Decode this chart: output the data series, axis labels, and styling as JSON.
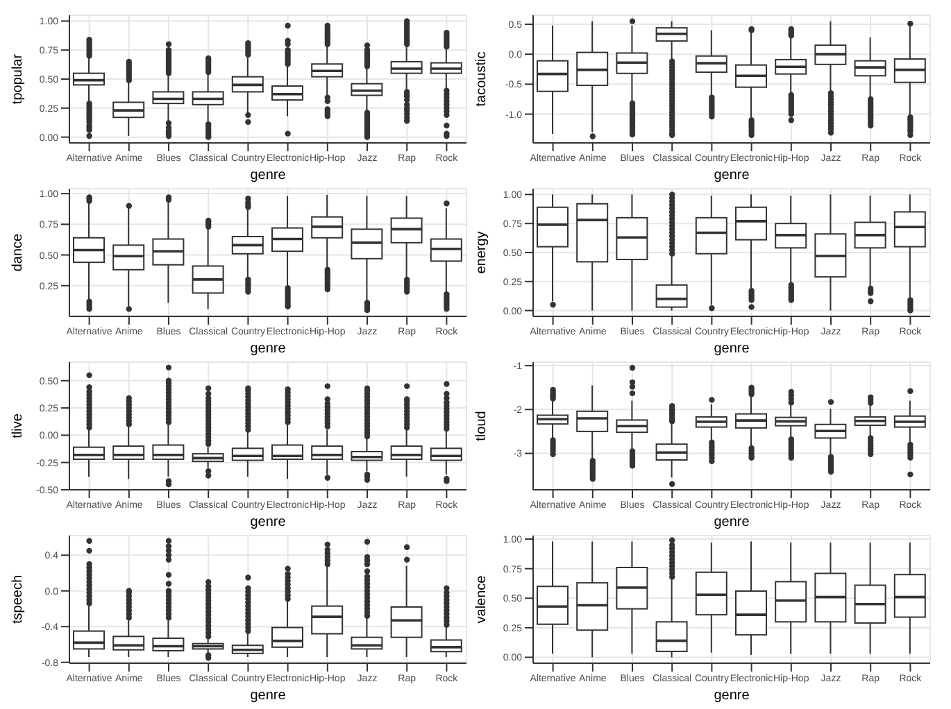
{
  "chart_data": [
    {
      "type": "box",
      "ylabel": "tpopular",
      "xlabel": "genre",
      "color": "#333333",
      "grid": true,
      "categories": [
        "Alternative",
        "Anime",
        "Blues",
        "Classical",
        "Country",
        "Electronic",
        "Hip-Hop",
        "Jazz",
        "Rap",
        "Rock"
      ],
      "ylim": [
        -0.05,
        1.05
      ],
      "yticks": [
        {
          "value": 0,
          "label": "0.00"
        },
        {
          "value": 0.25,
          "label": "0.25"
        },
        {
          "value": 0.5,
          "label": "0.50"
        },
        {
          "value": 0.75,
          "label": "0.75"
        },
        {
          "value": 1,
          "label": "1.00"
        }
      ],
      "boxes": [
        {
          "low": 0.3,
          "q1": 0.45,
          "median": 0.49,
          "q3": 0.55,
          "high": 0.69,
          "outliers": [
            0.7,
            0.72,
            0.74,
            0.76,
            0.78,
            0.8,
            0.82,
            0.84,
            0.29,
            0.27,
            0.25,
            0.23,
            0.21,
            0.19,
            0.17,
            0.15,
            0.13,
            0.1,
            0.08,
            0.06,
            0.01
          ]
        },
        {
          "low": 0.01,
          "q1": 0.17,
          "median": 0.23,
          "q3": 0.3,
          "high": 0.48,
          "outliers": [
            0.49,
            0.51,
            0.53,
            0.55,
            0.57,
            0.59,
            0.61,
            0.63,
            0.65
          ]
        },
        {
          "low": 0.14,
          "q1": 0.29,
          "median": 0.33,
          "q3": 0.39,
          "high": 0.54,
          "outliers": [
            0.55,
            0.57,
            0.59,
            0.61,
            0.63,
            0.65,
            0.67,
            0.69,
            0.71,
            0.73,
            0.75,
            0.8,
            0.12,
            0.08,
            0.05,
            0.03,
            0.01
          ]
        },
        {
          "low": 0.13,
          "q1": 0.28,
          "median": 0.33,
          "q3": 0.39,
          "high": 0.55,
          "outliers": [
            0.56,
            0.58,
            0.6,
            0.62,
            0.64,
            0.66,
            0.68,
            0.11,
            0.09,
            0.07,
            0.05,
            0.03,
            0.01,
            0.0
          ]
        },
        {
          "low": 0.2,
          "q1": 0.39,
          "median": 0.45,
          "q3": 0.52,
          "high": 0.7,
          "outliers": [
            0.71,
            0.73,
            0.75,
            0.77,
            0.79,
            0.81,
            0.19,
            0.13
          ]
        },
        {
          "low": 0.18,
          "q1": 0.32,
          "median": 0.37,
          "q3": 0.44,
          "high": 0.62,
          "outliers": [
            0.63,
            0.65,
            0.67,
            0.69,
            0.71,
            0.73,
            0.75,
            0.8,
            0.83,
            0.96,
            0.03
          ]
        },
        {
          "low": 0.36,
          "q1": 0.52,
          "median": 0.57,
          "q3": 0.63,
          "high": 0.79,
          "outliers": [
            0.8,
            0.82,
            0.84,
            0.86,
            0.88,
            0.9,
            0.92,
            0.94,
            0.96,
            0.34,
            0.31,
            0.24,
            0.22,
            0.2,
            0.18
          ]
        },
        {
          "low": 0.22,
          "q1": 0.36,
          "median": 0.4,
          "q3": 0.46,
          "high": 0.6,
          "outliers": [
            0.61,
            0.63,
            0.65,
            0.67,
            0.69,
            0.71,
            0.73,
            0.75,
            0.79,
            0.21,
            0.19,
            0.17,
            0.15,
            0.13,
            0.11,
            0.09,
            0.07,
            0.05,
            0.03,
            0.01,
            0.0
          ]
        },
        {
          "low": 0.41,
          "q1": 0.55,
          "median": 0.59,
          "q3": 0.65,
          "high": 0.79,
          "outliers": [
            0.8,
            0.82,
            0.84,
            0.86,
            0.88,
            0.9,
            0.92,
            0.94,
            0.96,
            0.98,
            1.0,
            0.39,
            0.37,
            0.35,
            0.32,
            0.28,
            0.25,
            0.23,
            0.2,
            0.17,
            0.14
          ]
        },
        {
          "low": 0.42,
          "q1": 0.55,
          "median": 0.59,
          "q3": 0.64,
          "high": 0.77,
          "outliers": [
            0.78,
            0.8,
            0.82,
            0.84,
            0.86,
            0.88,
            0.9,
            0.4,
            0.37,
            0.34,
            0.31,
            0.28,
            0.25,
            0.22,
            0.19,
            0.1,
            0.03,
            0.01
          ]
        }
      ]
    },
    {
      "type": "box",
      "ylabel": "tacoustic",
      "xlabel": "genre",
      "color": "#333333",
      "grid": true,
      "categories": [
        "Alternative",
        "Anime",
        "Blues",
        "Classical",
        "Country",
        "Electronic",
        "Hip-Hop",
        "Jazz",
        "Rap",
        "Rock"
      ],
      "ylim": [
        -1.48,
        0.65
      ],
      "yticks": [
        {
          "value": -1,
          "label": "-1.0"
        },
        -0.5,
        {
          "value": 0,
          "label": "0.0"
        },
        0.5
      ],
      "boxes": [
        {
          "low": -1.33,
          "q1": -0.62,
          "median": -0.33,
          "q3": -0.11,
          "high": 0.48
        },
        {
          "low": -1.3,
          "q1": -0.52,
          "median": -0.26,
          "q3": 0.03,
          "high": 0.55,
          "outliers": [
            -1.37
          ]
        },
        {
          "low": -0.78,
          "q1": -0.32,
          "median": -0.14,
          "q3": 0.02,
          "high": 0.48,
          "outliers": [
            0.55,
            -0.82,
            -0.86,
            -0.9,
            -0.94,
            -0.98,
            -1.02,
            -1.06,
            -1.1,
            -1.14,
            -1.18,
            -1.22,
            -1.26,
            -1.3,
            -1.34
          ]
        },
        {
          "low": -0.1,
          "q1": 0.22,
          "median": 0.34,
          "q3": 0.44,
          "high": 0.55,
          "outliers": [
            -0.12,
            -0.17,
            -0.22,
            -0.27,
            -0.32,
            -0.37,
            -0.42,
            -0.47,
            -0.52,
            -0.57,
            -0.62,
            -0.67,
            -0.72,
            -0.77,
            -0.82,
            -0.87,
            -0.92,
            -0.97,
            -1.02,
            -1.07,
            -1.12,
            -1.17,
            -1.22,
            -1.27,
            -1.32,
            -1.35
          ]
        },
        {
          "low": -0.68,
          "q1": -0.3,
          "median": -0.15,
          "q3": -0.03,
          "high": 0.4,
          "outliers": [
            -0.72,
            -0.76,
            -0.8,
            -0.84,
            -0.88,
            -0.92,
            -0.96,
            -1.0,
            -1.04
          ]
        },
        {
          "low": -1.08,
          "q1": -0.55,
          "median": -0.36,
          "q3": -0.18,
          "high": 0.38,
          "outliers": [
            0.4,
            0.42,
            -1.1,
            -1.14,
            -1.18,
            -1.22,
            -1.26,
            -1.3,
            -1.35
          ]
        },
        {
          "low": -0.66,
          "q1": -0.33,
          "median": -0.21,
          "q3": -0.09,
          "high": 0.28,
          "outliers": [
            0.31,
            0.34,
            0.37,
            0.4,
            0.42,
            -0.68,
            -0.72,
            -0.76,
            -0.8,
            -0.84,
            -0.88,
            -0.92,
            -0.96,
            -1.0,
            -1.1
          ]
        },
        {
          "low": -0.62,
          "q1": -0.17,
          "median": 0.0,
          "q3": 0.15,
          "high": 0.55,
          "outliers": [
            -0.65,
            -0.7,
            -0.75,
            -0.8,
            -0.85,
            -0.9,
            -0.95,
            -1.0,
            -1.05,
            -1.1,
            -1.15,
            -1.2,
            -1.25,
            -1.31
          ]
        },
        {
          "low": -0.73,
          "q1": -0.36,
          "median": -0.22,
          "q3": -0.11,
          "high": 0.28,
          "outliers": [
            -0.75,
            -0.79,
            -0.83,
            -0.87,
            -0.91,
            -0.95,
            -0.99,
            -1.03,
            -1.07,
            -1.11,
            -1.15,
            -1.19
          ]
        },
        {
          "low": -1.03,
          "q1": -0.47,
          "median": -0.26,
          "q3": -0.08,
          "high": 0.48,
          "outliers": [
            0.51,
            -1.05,
            -1.09,
            -1.13,
            -1.17,
            -1.21,
            -1.25,
            -1.29,
            -1.35
          ]
        }
      ]
    },
    {
      "type": "box",
      "ylabel": "dance",
      "xlabel": "genre",
      "color": "#333333",
      "grid": true,
      "categories": [
        "Alternative",
        "Anime",
        "Blues",
        "Classical",
        "Country",
        "Electronic",
        "Hip-Hop",
        "Jazz",
        "Rap",
        "Rock"
      ],
      "ylim": [
        0.0,
        1.04
      ],
      "yticks": [
        {
          "value": 0.25,
          "label": "0.25"
        },
        {
          "value": 0.5,
          "label": "0.50"
        },
        {
          "value": 0.75,
          "label": "0.75"
        },
        {
          "value": 1,
          "label": "1.00"
        }
      ],
      "boxes": [
        {
          "low": 0.14,
          "q1": 0.44,
          "median": 0.54,
          "q3": 0.64,
          "high": 0.93,
          "outliers": [
            0.94,
            0.96,
            0.97,
            0.12,
            0.1,
            0.08,
            0.06
          ]
        },
        {
          "low": 0.08,
          "q1": 0.38,
          "median": 0.49,
          "q3": 0.58,
          "high": 0.88,
          "outliers": [
            0.9,
            0.06
          ]
        },
        {
          "low": 0.11,
          "q1": 0.42,
          "median": 0.53,
          "q3": 0.63,
          "high": 0.93,
          "outliers": [
            0.95,
            0.97
          ]
        },
        {
          "low": 0.06,
          "q1": 0.19,
          "median": 0.3,
          "q3": 0.41,
          "high": 0.72,
          "outliers": [
            0.73,
            0.75,
            0.77,
            0.78
          ]
        },
        {
          "low": 0.32,
          "q1": 0.51,
          "median": 0.58,
          "q3": 0.65,
          "high": 0.88,
          "outliers": [
            0.89,
            0.91,
            0.93,
            0.96,
            0.3,
            0.28,
            0.26,
            0.24,
            0.22,
            0.2
          ]
        },
        {
          "low": 0.24,
          "q1": 0.53,
          "median": 0.63,
          "q3": 0.72,
          "high": 0.98,
          "outliers": [
            0.23,
            0.21,
            0.19,
            0.17,
            0.15,
            0.13,
            0.11,
            0.09,
            0.08
          ]
        },
        {
          "low": 0.39,
          "q1": 0.64,
          "median": 0.73,
          "q3": 0.81,
          "high": 0.99,
          "outliers": [
            0.38,
            0.36,
            0.34,
            0.32,
            0.3,
            0.28,
            0.26,
            0.24,
            0.22
          ]
        },
        {
          "low": 0.13,
          "q1": 0.47,
          "median": 0.6,
          "q3": 0.71,
          "high": 0.98,
          "outliers": [
            0.11,
            0.09,
            0.07,
            0.05
          ]
        },
        {
          "low": 0.31,
          "q1": 0.6,
          "median": 0.71,
          "q3": 0.8,
          "high": 0.98,
          "outliers": [
            0.3,
            0.28,
            0.26,
            0.24,
            0.22,
            0.2
          ]
        },
        {
          "low": 0.19,
          "q1": 0.45,
          "median": 0.55,
          "q3": 0.63,
          "high": 0.88,
          "outliers": [
            0.92,
            0.18,
            0.16,
            0.14,
            0.12,
            0.1,
            0.08,
            0.06
          ]
        }
      ]
    },
    {
      "type": "box",
      "ylabel": "energy",
      "xlabel": "genre",
      "color": "#333333",
      "grid": true,
      "categories": [
        "Alternative",
        "Anime",
        "Blues",
        "Classical",
        "Country",
        "Electronic",
        "Hip-Hop",
        "Jazz",
        "Rap",
        "Rock"
      ],
      "ylim": [
        -0.05,
        1.05
      ],
      "yticks": [
        {
          "value": 0,
          "label": "0.00"
        },
        {
          "value": 0.25,
          "label": "0.25"
        },
        {
          "value": 0.5,
          "label": "0.50"
        },
        {
          "value": 0.75,
          "label": "0.75"
        },
        {
          "value": 1,
          "label": "1.00"
        }
      ],
      "boxes": [
        {
          "low": 0.08,
          "q1": 0.55,
          "median": 0.74,
          "q3": 0.89,
          "high": 1.0,
          "outliers": [
            0.05
          ]
        },
        {
          "low": 0.0,
          "q1": 0.42,
          "median": 0.78,
          "q3": 0.92,
          "high": 1.0
        },
        {
          "low": 0.0,
          "q1": 0.44,
          "median": 0.63,
          "q3": 0.8,
          "high": 1.0
        },
        {
          "low": 0.0,
          "q1": 0.03,
          "median": 0.1,
          "q3": 0.22,
          "high": 0.48,
          "outliers": [
            0.49,
            0.52,
            0.55,
            0.58,
            0.61,
            0.64,
            0.67,
            0.7,
            0.73,
            0.76,
            0.79,
            0.82,
            0.85,
            0.88,
            0.91,
            0.94,
            0.97,
            1.0
          ]
        },
        {
          "low": 0.05,
          "q1": 0.49,
          "median": 0.67,
          "q3": 0.8,
          "high": 0.99,
          "outliers": [
            0.02
          ]
        },
        {
          "low": 0.19,
          "q1": 0.61,
          "median": 0.77,
          "q3": 0.89,
          "high": 1.0,
          "outliers": [
            0.17,
            0.15,
            0.13,
            0.11,
            0.09,
            0.03
          ]
        },
        {
          "low": 0.23,
          "q1": 0.54,
          "median": 0.65,
          "q3": 0.75,
          "high": 0.99,
          "outliers": [
            0.22,
            0.2,
            0.18,
            0.16,
            0.14,
            0.12,
            0.1,
            0.09
          ]
        },
        {
          "low": 0.0,
          "q1": 0.29,
          "median": 0.47,
          "q3": 0.66,
          "high": 1.0
        },
        {
          "low": 0.21,
          "q1": 0.54,
          "median": 0.65,
          "q3": 0.76,
          "high": 0.99,
          "outliers": [
            0.19,
            0.17,
            0.15,
            0.08
          ]
        },
        {
          "low": 0.1,
          "q1": 0.55,
          "median": 0.72,
          "q3": 0.85,
          "high": 1.0,
          "outliers": [
            0.09,
            0.07,
            0.05,
            0.03,
            0.01,
            0.0
          ]
        }
      ]
    },
    {
      "type": "box",
      "ylabel": "tlive",
      "xlabel": "genre",
      "color": "#333333",
      "grid": true,
      "categories": [
        "Alternative",
        "Anime",
        "Blues",
        "Classical",
        "Country",
        "Electronic",
        "Hip-Hop",
        "Jazz",
        "Rap",
        "Rock"
      ],
      "ylim": [
        -0.5,
        0.67
      ],
      "yticks": [
        {
          "value": -0.5,
          "label": "-0.50"
        },
        -0.25,
        {
          "value": 0,
          "label": "0.00"
        },
        0.25,
        {
          "value": 0.5,
          "label": "0.50"
        }
      ],
      "boxes": [
        {
          "low": -0.38,
          "q1": -0.22,
          "median": -0.18,
          "q3": -0.11,
          "high": 0.05,
          "outliers": [
            0.07,
            0.1,
            0.13,
            0.16,
            0.19,
            0.22,
            0.25,
            0.28,
            0.31,
            0.34,
            0.37,
            0.4,
            0.44,
            0.55
          ]
        },
        {
          "low": -0.4,
          "q1": -0.22,
          "median": -0.18,
          "q3": -0.1,
          "high": 0.08,
          "outliers": [
            0.1,
            0.13,
            0.16,
            0.19,
            0.22,
            0.25,
            0.28,
            0.31,
            0.34
          ]
        },
        {
          "low": -0.38,
          "q1": -0.22,
          "median": -0.18,
          "q3": -0.09,
          "high": 0.1,
          "outliers": [
            0.12,
            0.15,
            0.18,
            0.21,
            0.24,
            0.27,
            0.3,
            0.33,
            0.36,
            0.39,
            0.42,
            0.45,
            0.48,
            0.5,
            0.62,
            -0.42,
            -0.45
          ]
        },
        {
          "low": -0.3,
          "q1": -0.24,
          "median": -0.21,
          "q3": -0.17,
          "high": -0.11,
          "outliers": [
            -0.08,
            -0.05,
            -0.02,
            0.01,
            0.04,
            0.07,
            0.1,
            0.13,
            0.16,
            0.19,
            0.22,
            0.25,
            0.28,
            0.31,
            0.34,
            0.38,
            0.43,
            -0.33,
            -0.37
          ]
        },
        {
          "low": -0.38,
          "q1": -0.23,
          "median": -0.19,
          "q3": -0.12,
          "high": 0.03,
          "outliers": [
            0.05,
            0.08,
            0.11,
            0.14,
            0.17,
            0.2,
            0.23,
            0.26,
            0.29,
            0.32,
            0.35,
            0.38,
            0.41,
            0.43
          ]
        },
        {
          "low": -0.4,
          "q1": -0.22,
          "median": -0.19,
          "q3": -0.09,
          "high": 0.1,
          "outliers": [
            0.12,
            0.15,
            0.18,
            0.21,
            0.24,
            0.27,
            0.3,
            0.33,
            0.36,
            0.39,
            0.42
          ]
        },
        {
          "low": -0.36,
          "q1": -0.22,
          "median": -0.18,
          "q3": -0.1,
          "high": 0.05,
          "outliers": [
            0.08,
            0.11,
            0.14,
            0.17,
            0.2,
            0.23,
            0.26,
            0.29,
            0.33,
            0.45,
            -0.39
          ]
        },
        {
          "low": -0.33,
          "q1": -0.23,
          "median": -0.2,
          "q3": -0.15,
          "high": -0.03,
          "outliers": [
            -0.01,
            0.02,
            0.05,
            0.08,
            0.11,
            0.14,
            0.17,
            0.2,
            0.23,
            0.26,
            0.29,
            0.32,
            0.35,
            0.38,
            0.41,
            0.43,
            -0.36,
            -0.38,
            -0.41
          ]
        },
        {
          "low": -0.38,
          "q1": -0.22,
          "median": -0.18,
          "q3": -0.1,
          "high": 0.05,
          "outliers": [
            0.07,
            0.1,
            0.13,
            0.16,
            0.19,
            0.22,
            0.25,
            0.28,
            0.31,
            0.33,
            0.45
          ]
        },
        {
          "low": -0.36,
          "q1": -0.23,
          "median": -0.19,
          "q3": -0.12,
          "high": 0.04,
          "outliers": [
            0.06,
            0.09,
            0.12,
            0.15,
            0.18,
            0.21,
            0.24,
            0.27,
            0.3,
            0.34,
            0.38,
            0.47,
            -0.4,
            -0.42
          ]
        }
      ]
    },
    {
      "type": "box",
      "ylabel": "tloud",
      "xlabel": "genre",
      "color": "#333333",
      "grid": true,
      "categories": [
        "Alternative",
        "Anime",
        "Blues",
        "Classical",
        "Country",
        "Electronic",
        "Hip-Hop",
        "Jazz",
        "Rap",
        "Rock"
      ],
      "ylim": [
        -3.83,
        -0.92
      ],
      "yticks": [
        -3,
        -2,
        -1
      ],
      "boxes": [
        {
          "low": -2.68,
          "q1": -2.33,
          "median": -2.22,
          "q3": -2.13,
          "high": -1.78,
          "outliers": [
            -1.55,
            -1.6,
            -1.65,
            -1.7,
            -1.75,
            -2.7,
            -2.76,
            -2.82,
            -2.88,
            -2.94,
            -3.02
          ]
        },
        {
          "low": -3.15,
          "q1": -2.5,
          "median": -2.2,
          "q3": -2.04,
          "high": -1.45,
          "outliers": [
            -3.17,
            -3.22,
            -3.27,
            -3.32,
            -3.37,
            -3.42,
            -3.47,
            -3.52,
            -3.58
          ]
        },
        {
          "low": -2.92,
          "q1": -2.52,
          "median": -2.38,
          "q3": -2.24,
          "high": -1.8,
          "outliers": [
            -1.05,
            -1.38,
            -1.48,
            -1.63,
            -2.95,
            -3.02,
            -3.09,
            -3.16,
            -3.22,
            -3.28
          ]
        },
        {
          "low": -3.55,
          "q1": -3.15,
          "median": -2.98,
          "q3": -2.79,
          "high": -2.32,
          "outliers": [
            -1.92,
            -1.97,
            -2.02,
            -2.07,
            -2.12,
            -2.17,
            -2.22,
            -2.27,
            -3.7
          ]
        },
        {
          "low": -2.72,
          "q1": -2.4,
          "median": -2.28,
          "q3": -2.17,
          "high": -1.88,
          "outliers": [
            -1.78,
            -2.75,
            -2.81,
            -2.87,
            -2.93,
            -2.99,
            -3.05,
            -3.11,
            -3.18
          ]
        },
        {
          "low": -2.85,
          "q1": -2.42,
          "median": -2.25,
          "q3": -2.1,
          "high": -1.68,
          "outliers": [
            -1.5,
            -1.55,
            -1.6,
            -1.65,
            -2.88,
            -2.94,
            -3.0,
            -3.06,
            -3.1
          ]
        },
        {
          "low": -2.65,
          "q1": -2.37,
          "median": -2.27,
          "q3": -2.18,
          "high": -1.88,
          "outliers": [
            -1.6,
            -1.68,
            -1.76,
            -1.84,
            -2.68,
            -2.74,
            -2.8,
            -2.86,
            -2.92,
            -2.98,
            -3.04,
            -3.1
          ]
        },
        {
          "low": -3.05,
          "q1": -2.65,
          "median": -2.49,
          "q3": -2.34,
          "high": -1.98,
          "outliers": [
            -1.83,
            -3.08,
            -3.14,
            -3.2,
            -3.26,
            -3.32,
            -3.38,
            -3.42
          ]
        },
        {
          "low": -2.62,
          "q1": -2.36,
          "median": -2.26,
          "q3": -2.17,
          "high": -1.88,
          "outliers": [
            -1.72,
            -1.78,
            -1.85,
            -2.65,
            -2.71,
            -2.77,
            -2.83,
            -2.89,
            -2.95,
            -3.02
          ]
        },
        {
          "low": -2.75,
          "q1": -2.4,
          "median": -2.28,
          "q3": -2.15,
          "high": -1.8,
          "outliers": [
            -1.58,
            -2.8,
            -2.86,
            -2.92,
            -2.98,
            -3.04,
            -3.1,
            -3.48
          ]
        }
      ]
    },
    {
      "type": "box",
      "ylabel": "tspeech",
      "xlabel": "genre",
      "color": "#333333",
      "grid": true,
      "categories": [
        "Alternative",
        "Anime",
        "Blues",
        "Classical",
        "Country",
        "Electronic",
        "Hip-Hop",
        "Jazz",
        "Rap",
        "Rock"
      ],
      "ylim": [
        -0.81,
        0.62
      ],
      "yticks": [
        -0.8,
        -0.4,
        {
          "value": 0,
          "label": "0.0"
        },
        0.4
      ],
      "boxes": [
        {
          "low": -0.74,
          "q1": -0.65,
          "median": -0.58,
          "q3": -0.45,
          "high": -0.17,
          "outliers": [
            -0.14,
            -0.1,
            -0.06,
            -0.02,
            0.02,
            0.06,
            0.1,
            0.14,
            0.18,
            0.22,
            0.26,
            0.3,
            0.45,
            0.56
          ]
        },
        {
          "low": -0.74,
          "q1": -0.66,
          "median": -0.61,
          "q3": -0.51,
          "high": -0.32,
          "outliers": [
            -0.3,
            -0.26,
            -0.22,
            -0.18,
            -0.14,
            -0.1,
            -0.06,
            -0.02,
            0.0
          ]
        },
        {
          "low": -0.74,
          "q1": -0.67,
          "median": -0.62,
          "q3": -0.53,
          "high": -0.32,
          "outliers": [
            -0.3,
            -0.26,
            -0.22,
            -0.18,
            -0.14,
            -0.1,
            -0.06,
            -0.02,
            0.0,
            0.08,
            0.18,
            0.35,
            0.4,
            0.45,
            0.5,
            0.56
          ]
        },
        {
          "low": -0.7,
          "q1": -0.65,
          "median": -0.62,
          "q3": -0.59,
          "high": -0.53,
          "outliers": [
            -0.51,
            -0.47,
            -0.43,
            -0.39,
            -0.35,
            -0.31,
            -0.27,
            -0.23,
            -0.19,
            -0.15,
            -0.11,
            -0.07,
            -0.03,
            0.01,
            0.05,
            0.1,
            -0.72,
            -0.75
          ]
        },
        {
          "low": -0.74,
          "q1": -0.7,
          "median": -0.66,
          "q3": -0.61,
          "high": -0.48,
          "outliers": [
            -0.45,
            -0.41,
            -0.37,
            -0.33,
            -0.29,
            -0.25,
            -0.21,
            -0.17,
            -0.13,
            -0.09,
            -0.05,
            -0.01,
            0.03,
            0.15
          ]
        },
        {
          "low": -0.74,
          "q1": -0.63,
          "median": -0.56,
          "q3": -0.41,
          "high": -0.11,
          "outliers": [
            -0.09,
            -0.05,
            -0.01,
            0.03,
            0.07,
            0.11,
            0.15,
            0.19,
            0.25
          ]
        },
        {
          "low": -0.74,
          "q1": -0.48,
          "median": -0.29,
          "q3": -0.17,
          "high": 0.28,
          "outliers": [
            0.3,
            0.34,
            0.38,
            0.42,
            0.46,
            0.52
          ]
        },
        {
          "low": -0.74,
          "q1": -0.65,
          "median": -0.61,
          "q3": -0.52,
          "high": -0.3,
          "outliers": [
            -0.28,
            -0.24,
            -0.2,
            -0.16,
            -0.12,
            -0.08,
            -0.04,
            0.0,
            0.04,
            0.08,
            0.12,
            0.16,
            0.22,
            0.3,
            0.34,
            0.38,
            0.55
          ]
        },
        {
          "low": -0.74,
          "q1": -0.52,
          "median": -0.33,
          "q3": -0.18,
          "high": 0.28,
          "outliers": [
            0.35,
            0.49
          ]
        },
        {
          "low": -0.74,
          "q1": -0.68,
          "median": -0.63,
          "q3": -0.55,
          "high": -0.4,
          "outliers": [
            -0.38,
            -0.34,
            -0.3,
            -0.26,
            -0.22,
            -0.18,
            -0.14,
            -0.1,
            -0.06,
            -0.02,
            0.03
          ]
        }
      ]
    },
    {
      "type": "box",
      "ylabel": "valence",
      "xlabel": "genre",
      "color": "#333333",
      "grid": true,
      "categories": [
        "Alternative",
        "Anime",
        "Blues",
        "Classical",
        "Country",
        "Electronic",
        "Hip-Hop",
        "Jazz",
        "Rap",
        "Rock"
      ],
      "ylim": [
        -0.05,
        1.03
      ],
      "yticks": [
        {
          "value": 0,
          "label": "0.00"
        },
        {
          "value": 0.25,
          "label": "0.25"
        },
        {
          "value": 0.5,
          "label": "0.50"
        },
        {
          "value": 0.75,
          "label": "0.75"
        },
        {
          "value": 1,
          "label": "1.00"
        }
      ],
      "boxes": [
        {
          "low": 0.03,
          "q1": 0.28,
          "median": 0.43,
          "q3": 0.6,
          "high": 0.98
        },
        {
          "low": 0.0,
          "q1": 0.23,
          "median": 0.44,
          "q3": 0.63,
          "high": 0.98
        },
        {
          "low": 0.03,
          "q1": 0.41,
          "median": 0.59,
          "q3": 0.76,
          "high": 0.98
        },
        {
          "low": 0.0,
          "q1": 0.05,
          "median": 0.14,
          "q3": 0.3,
          "high": 0.67,
          "outliers": [
            0.68,
            0.71,
            0.74,
            0.77,
            0.8,
            0.83,
            0.86,
            0.89,
            0.92,
            0.95,
            0.99
          ]
        },
        {
          "low": 0.04,
          "q1": 0.36,
          "median": 0.53,
          "q3": 0.72,
          "high": 0.97
        },
        {
          "low": 0.02,
          "q1": 0.19,
          "median": 0.36,
          "q3": 0.56,
          "high": 0.98
        },
        {
          "low": 0.03,
          "q1": 0.3,
          "median": 0.48,
          "q3": 0.64,
          "high": 0.97
        },
        {
          "low": 0.03,
          "q1": 0.3,
          "median": 0.51,
          "q3": 0.71,
          "high": 0.97
        },
        {
          "low": 0.03,
          "q1": 0.29,
          "median": 0.45,
          "q3": 0.61,
          "high": 0.97
        },
        {
          "low": 0.03,
          "q1": 0.34,
          "median": 0.51,
          "q3": 0.7,
          "high": 0.97
        }
      ]
    }
  ]
}
